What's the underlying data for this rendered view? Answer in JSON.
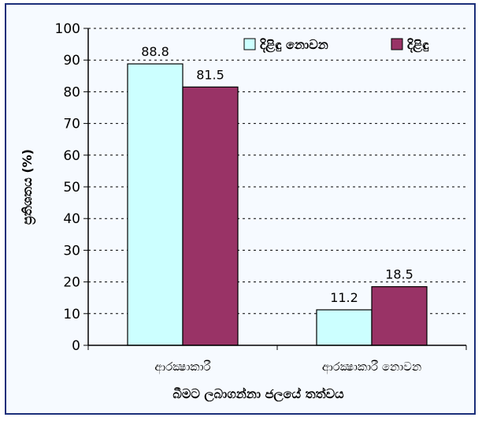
{
  "chart_data": {
    "type": "bar",
    "categories": [
      "ආරක්‍ෂාකාරී",
      "ආරක්‍ෂාකාරී නොවන"
    ],
    "series": [
      {
        "name": "දිළිඳු නොවන",
        "values": [
          88.8,
          11.2
        ],
        "color": "#ccffff"
      },
      {
        "name": "දිළිඳු",
        "values": [
          81.5,
          18.5
        ],
        "color": "#993366"
      }
    ],
    "yticks": [
      "0",
      "10",
      "20",
      "30",
      "40",
      "50",
      "60",
      "70",
      "80",
      "90",
      "100"
    ],
    "ylim": [
      0,
      100
    ],
    "xlabel": "බීමට ලබාගන්නා ජලයේ තත්වය",
    "ylabel": "ප්‍රතිශතය (%)",
    "grid": true,
    "legend": "top-right"
  }
}
